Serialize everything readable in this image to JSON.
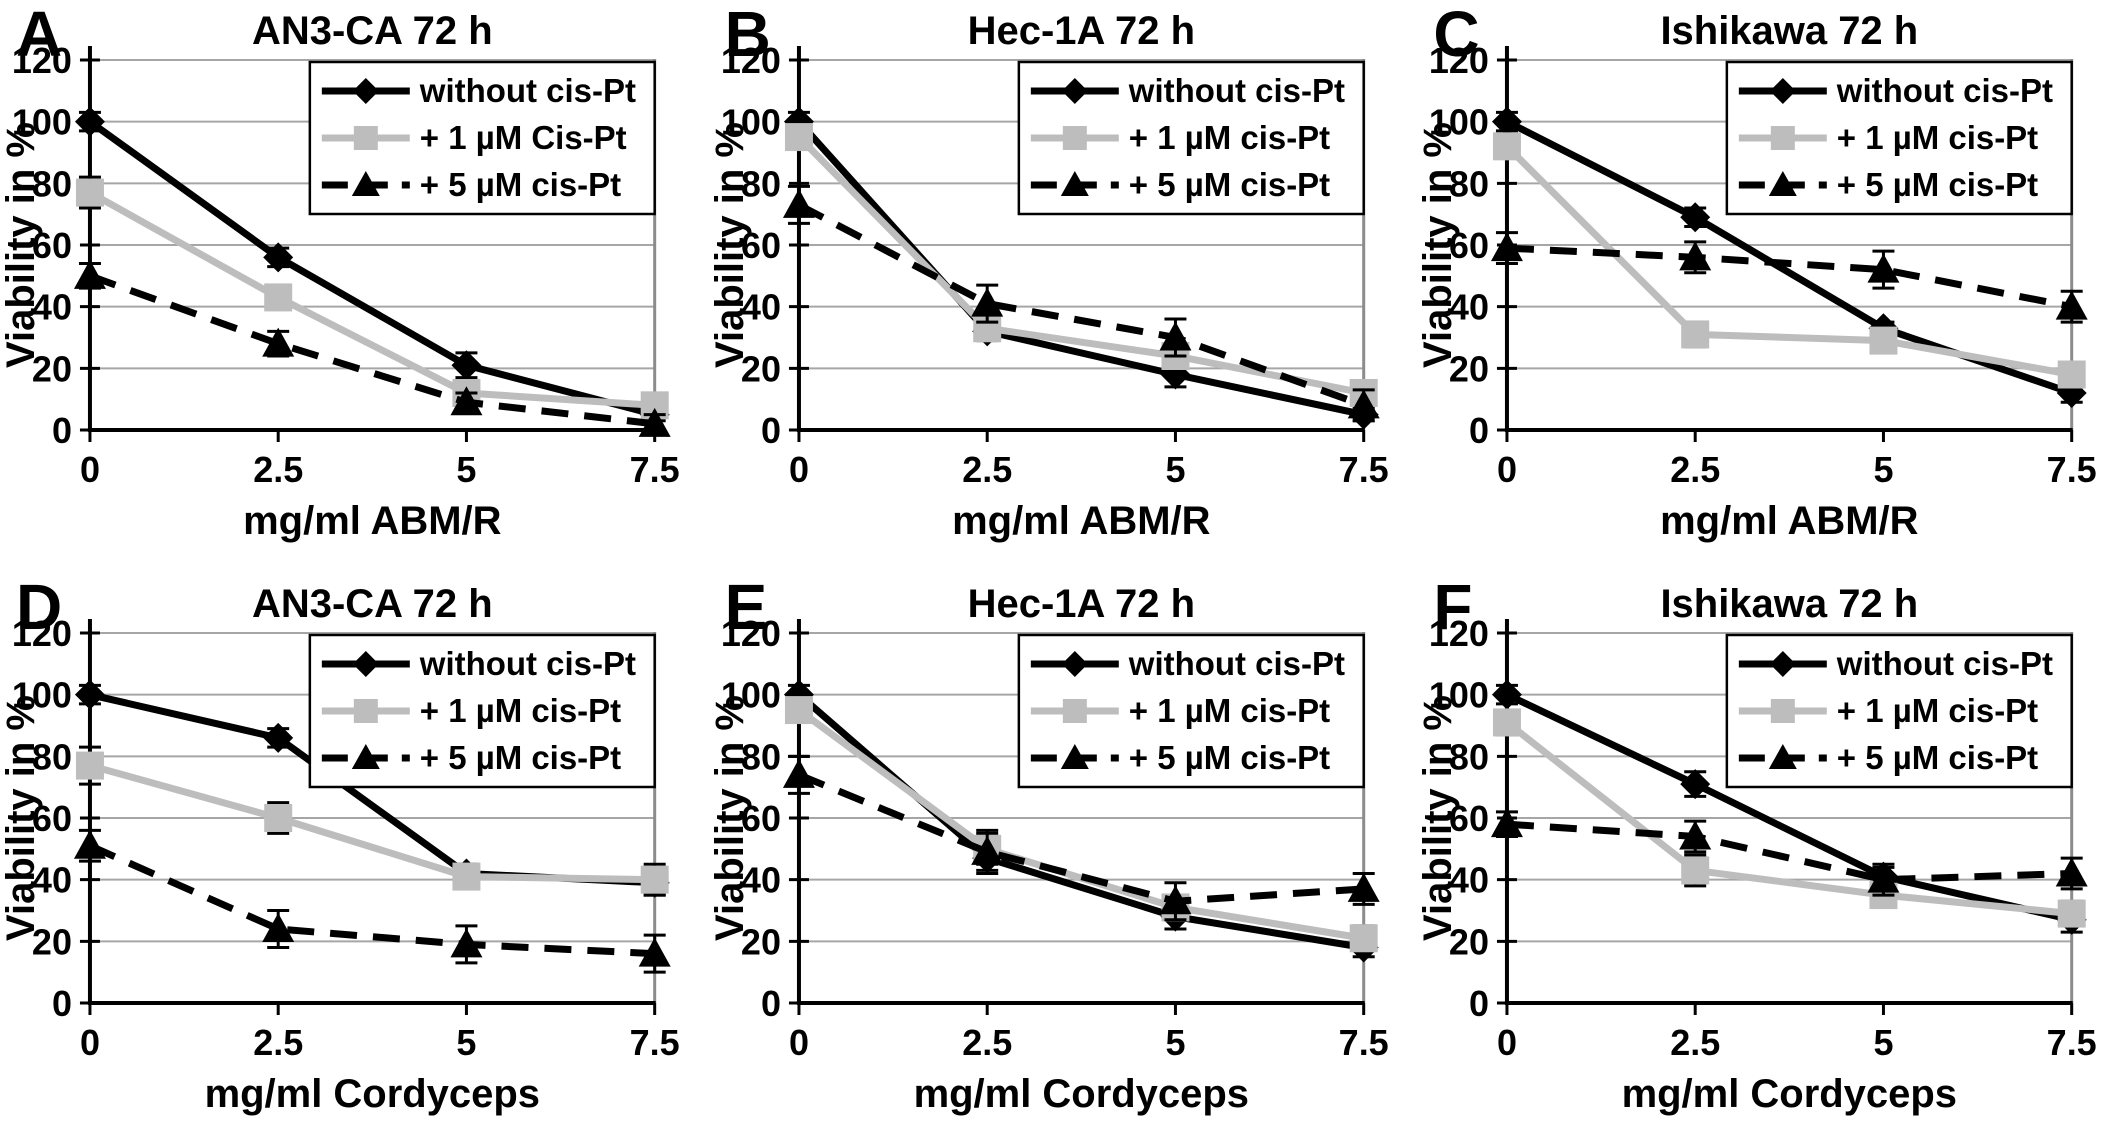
{
  "figure": {
    "background": "#ffffff",
    "colors": {
      "black": "#000000",
      "gray_series": "#bdbdbd",
      "gridline": "#a6a6a6",
      "plot_border": "#8c8c8c",
      "legend_border": "#000000",
      "legend_fill": "#ffffff"
    }
  },
  "chart_data": [
    {
      "panel_label": "A",
      "type": "line",
      "title": "AN3-CA 72 h",
      "xlabel": "mg/ml ABM/R",
      "ylabel": "Viability in %",
      "x": [
        0,
        2.5,
        5,
        7.5
      ],
      "xtick_labels": [
        "0",
        "2.5",
        "5",
        "7.5"
      ],
      "yticks": [
        0,
        20,
        40,
        60,
        80,
        100,
        120
      ],
      "ylim": [
        0,
        120
      ],
      "grid": "horizontal",
      "legend_position": "top-right",
      "series": [
        {
          "name": "without cis-Pt",
          "marker": "diamond",
          "line": "solid",
          "color": "#000000",
          "values": [
            100,
            56,
            21,
            5
          ],
          "errors": [
            3,
            3,
            4,
            2
          ]
        },
        {
          "name": "+ 1 µM Cis-Pt",
          "marker": "square",
          "line": "solid",
          "color": "#bdbdbd",
          "values": [
            77,
            43,
            12,
            8
          ],
          "errors": [
            5,
            2,
            2,
            3
          ]
        },
        {
          "name": "+ 5 µM cis-Pt",
          "marker": "triangle",
          "line": "dashed",
          "color": "#000000",
          "values": [
            50,
            28,
            9,
            2
          ],
          "errors": [
            4,
            4,
            3,
            3
          ]
        }
      ]
    },
    {
      "panel_label": "B",
      "type": "line",
      "title": "Hec-1A 72 h",
      "xlabel": "mg/ml ABM/R",
      "ylabel": "Viability in %",
      "x": [
        0,
        2.5,
        5,
        7.5
      ],
      "xtick_labels": [
        "0",
        "2.5",
        "5",
        "7.5"
      ],
      "yticks": [
        0,
        20,
        40,
        60,
        80,
        100,
        120
      ],
      "ylim": [
        0,
        120
      ],
      "grid": "horizontal",
      "legend_position": "top-right",
      "series": [
        {
          "name": "without cis-Pt",
          "marker": "diamond",
          "line": "solid",
          "color": "#000000",
          "values": [
            100,
            32,
            18,
            5
          ],
          "errors": [
            3,
            3,
            4,
            2
          ]
        },
        {
          "name": "+ 1 µM cis-Pt",
          "marker": "square",
          "line": "solid",
          "color": "#bdbdbd",
          "values": [
            95,
            33,
            24,
            12
          ],
          "errors": [
            3,
            3,
            3,
            2
          ]
        },
        {
          "name": "+ 5 µM cis-Pt",
          "marker": "triangle",
          "line": "dashed",
          "color": "#000000",
          "values": [
            73,
            41,
            30,
            8
          ],
          "errors": [
            6,
            6,
            6,
            5
          ]
        }
      ]
    },
    {
      "panel_label": "C",
      "type": "line",
      "title": "Ishikawa 72 h",
      "xlabel": "mg/ml ABM/R",
      "ylabel": "Viability in %",
      "x": [
        0,
        2.5,
        5,
        7.5
      ],
      "xtick_labels": [
        "0",
        "2.5",
        "5",
        "7.5"
      ],
      "yticks": [
        0,
        20,
        40,
        60,
        80,
        100,
        120
      ],
      "ylim": [
        0,
        120
      ],
      "grid": "horizontal",
      "legend_position": "top-right",
      "series": [
        {
          "name": "without cis-Pt",
          "marker": "diamond",
          "line": "solid",
          "color": "#000000",
          "values": [
            100,
            69,
            33,
            12
          ],
          "errors": [
            3,
            3,
            2,
            3
          ]
        },
        {
          "name": "+ 1 µM cis-Pt",
          "marker": "square",
          "line": "solid",
          "color": "#bdbdbd",
          "values": [
            92,
            31,
            29,
            18
          ],
          "errors": [
            3,
            4,
            2,
            3
          ]
        },
        {
          "name": "+ 5 µM cis-Pt",
          "marker": "triangle",
          "line": "dashed",
          "color": "#000000",
          "values": [
            59,
            56,
            52,
            40
          ],
          "errors": [
            5,
            5,
            6,
            5
          ]
        }
      ]
    },
    {
      "panel_label": "D",
      "type": "line",
      "title": "AN3-CA 72 h",
      "xlabel": "mg/ml Cordyceps",
      "ylabel": "Viability in %",
      "x": [
        0,
        2.5,
        5,
        7.5
      ],
      "xtick_labels": [
        "0",
        "2.5",
        "5",
        "7.5"
      ],
      "yticks": [
        0,
        20,
        40,
        60,
        80,
        100,
        120
      ],
      "ylim": [
        0,
        120
      ],
      "grid": "horizontal",
      "legend_position": "top-right",
      "series": [
        {
          "name": "without cis-Pt",
          "marker": "diamond",
          "line": "solid",
          "color": "#000000",
          "values": [
            100,
            86,
            42,
            39
          ],
          "errors": [
            3,
            3,
            3,
            4
          ]
        },
        {
          "name": "+ 1 µM cis-Pt",
          "marker": "square",
          "line": "solid",
          "color": "#bdbdbd",
          "values": [
            77,
            60,
            41,
            40
          ],
          "errors": [
            6,
            5,
            4,
            5
          ]
        },
        {
          "name": "+ 5 µM cis-Pt",
          "marker": "triangle",
          "line": "dashed",
          "color": "#000000",
          "values": [
            51,
            24,
            19,
            16
          ],
          "errors": [
            5,
            6,
            6,
            6
          ]
        }
      ]
    },
    {
      "panel_label": "E",
      "type": "line",
      "title": "Hec-1A 72 h",
      "xlabel": "mg/ml Cordyceps",
      "ylabel": "Viability in %",
      "x": [
        0,
        2.5,
        5,
        7.5
      ],
      "xtick_labels": [
        "0",
        "2.5",
        "5",
        "7.5"
      ],
      "yticks": [
        0,
        20,
        40,
        60,
        80,
        100,
        120
      ],
      "ylim": [
        0,
        120
      ],
      "grid": "horizontal",
      "legend_position": "top-right",
      "series": [
        {
          "name": "without cis-Pt",
          "marker": "diamond",
          "line": "solid",
          "color": "#000000",
          "values": [
            100,
            47,
            28,
            18
          ],
          "errors": [
            3,
            4,
            4,
            3
          ]
        },
        {
          "name": "+ 1 µM cis-Pt",
          "marker": "square",
          "line": "solid",
          "color": "#bdbdbd",
          "values": [
            95,
            50,
            31,
            21
          ],
          "errors": [
            4,
            5,
            4,
            4
          ]
        },
        {
          "name": "+ 5 µM cis-Pt",
          "marker": "triangle",
          "line": "dashed",
          "color": "#000000",
          "values": [
            74,
            49,
            33,
            37
          ],
          "errors": [
            6,
            7,
            6,
            5
          ]
        }
      ]
    },
    {
      "panel_label": "F",
      "type": "line",
      "title": "Ishikawa 72 h",
      "xlabel": "mg/ml Cordyceps",
      "ylabel": "Viability in %",
      "x": [
        0,
        2.5,
        5,
        7.5
      ],
      "xtick_labels": [
        "0",
        "2.5",
        "5",
        "7.5"
      ],
      "yticks": [
        0,
        20,
        40,
        60,
        80,
        100,
        120
      ],
      "ylim": [
        0,
        120
      ],
      "grid": "horizontal",
      "legend_position": "top-right",
      "series": [
        {
          "name": "without cis-Pt",
          "marker": "diamond",
          "line": "solid",
          "color": "#000000",
          "values": [
            100,
            71,
            41,
            27
          ],
          "errors": [
            3,
            4,
            3,
            4
          ]
        },
        {
          "name": "+ 1 µM cis-Pt",
          "marker": "square",
          "line": "solid",
          "color": "#bdbdbd",
          "values": [
            91,
            43,
            35,
            29
          ],
          "errors": [
            4,
            5,
            4,
            4
          ]
        },
        {
          "name": "+ 5 µM cis-Pt",
          "marker": "triangle",
          "line": "dashed",
          "color": "#000000",
          "values": [
            58,
            54,
            40,
            42
          ],
          "errors": [
            4,
            5,
            5,
            5
          ]
        }
      ]
    }
  ]
}
